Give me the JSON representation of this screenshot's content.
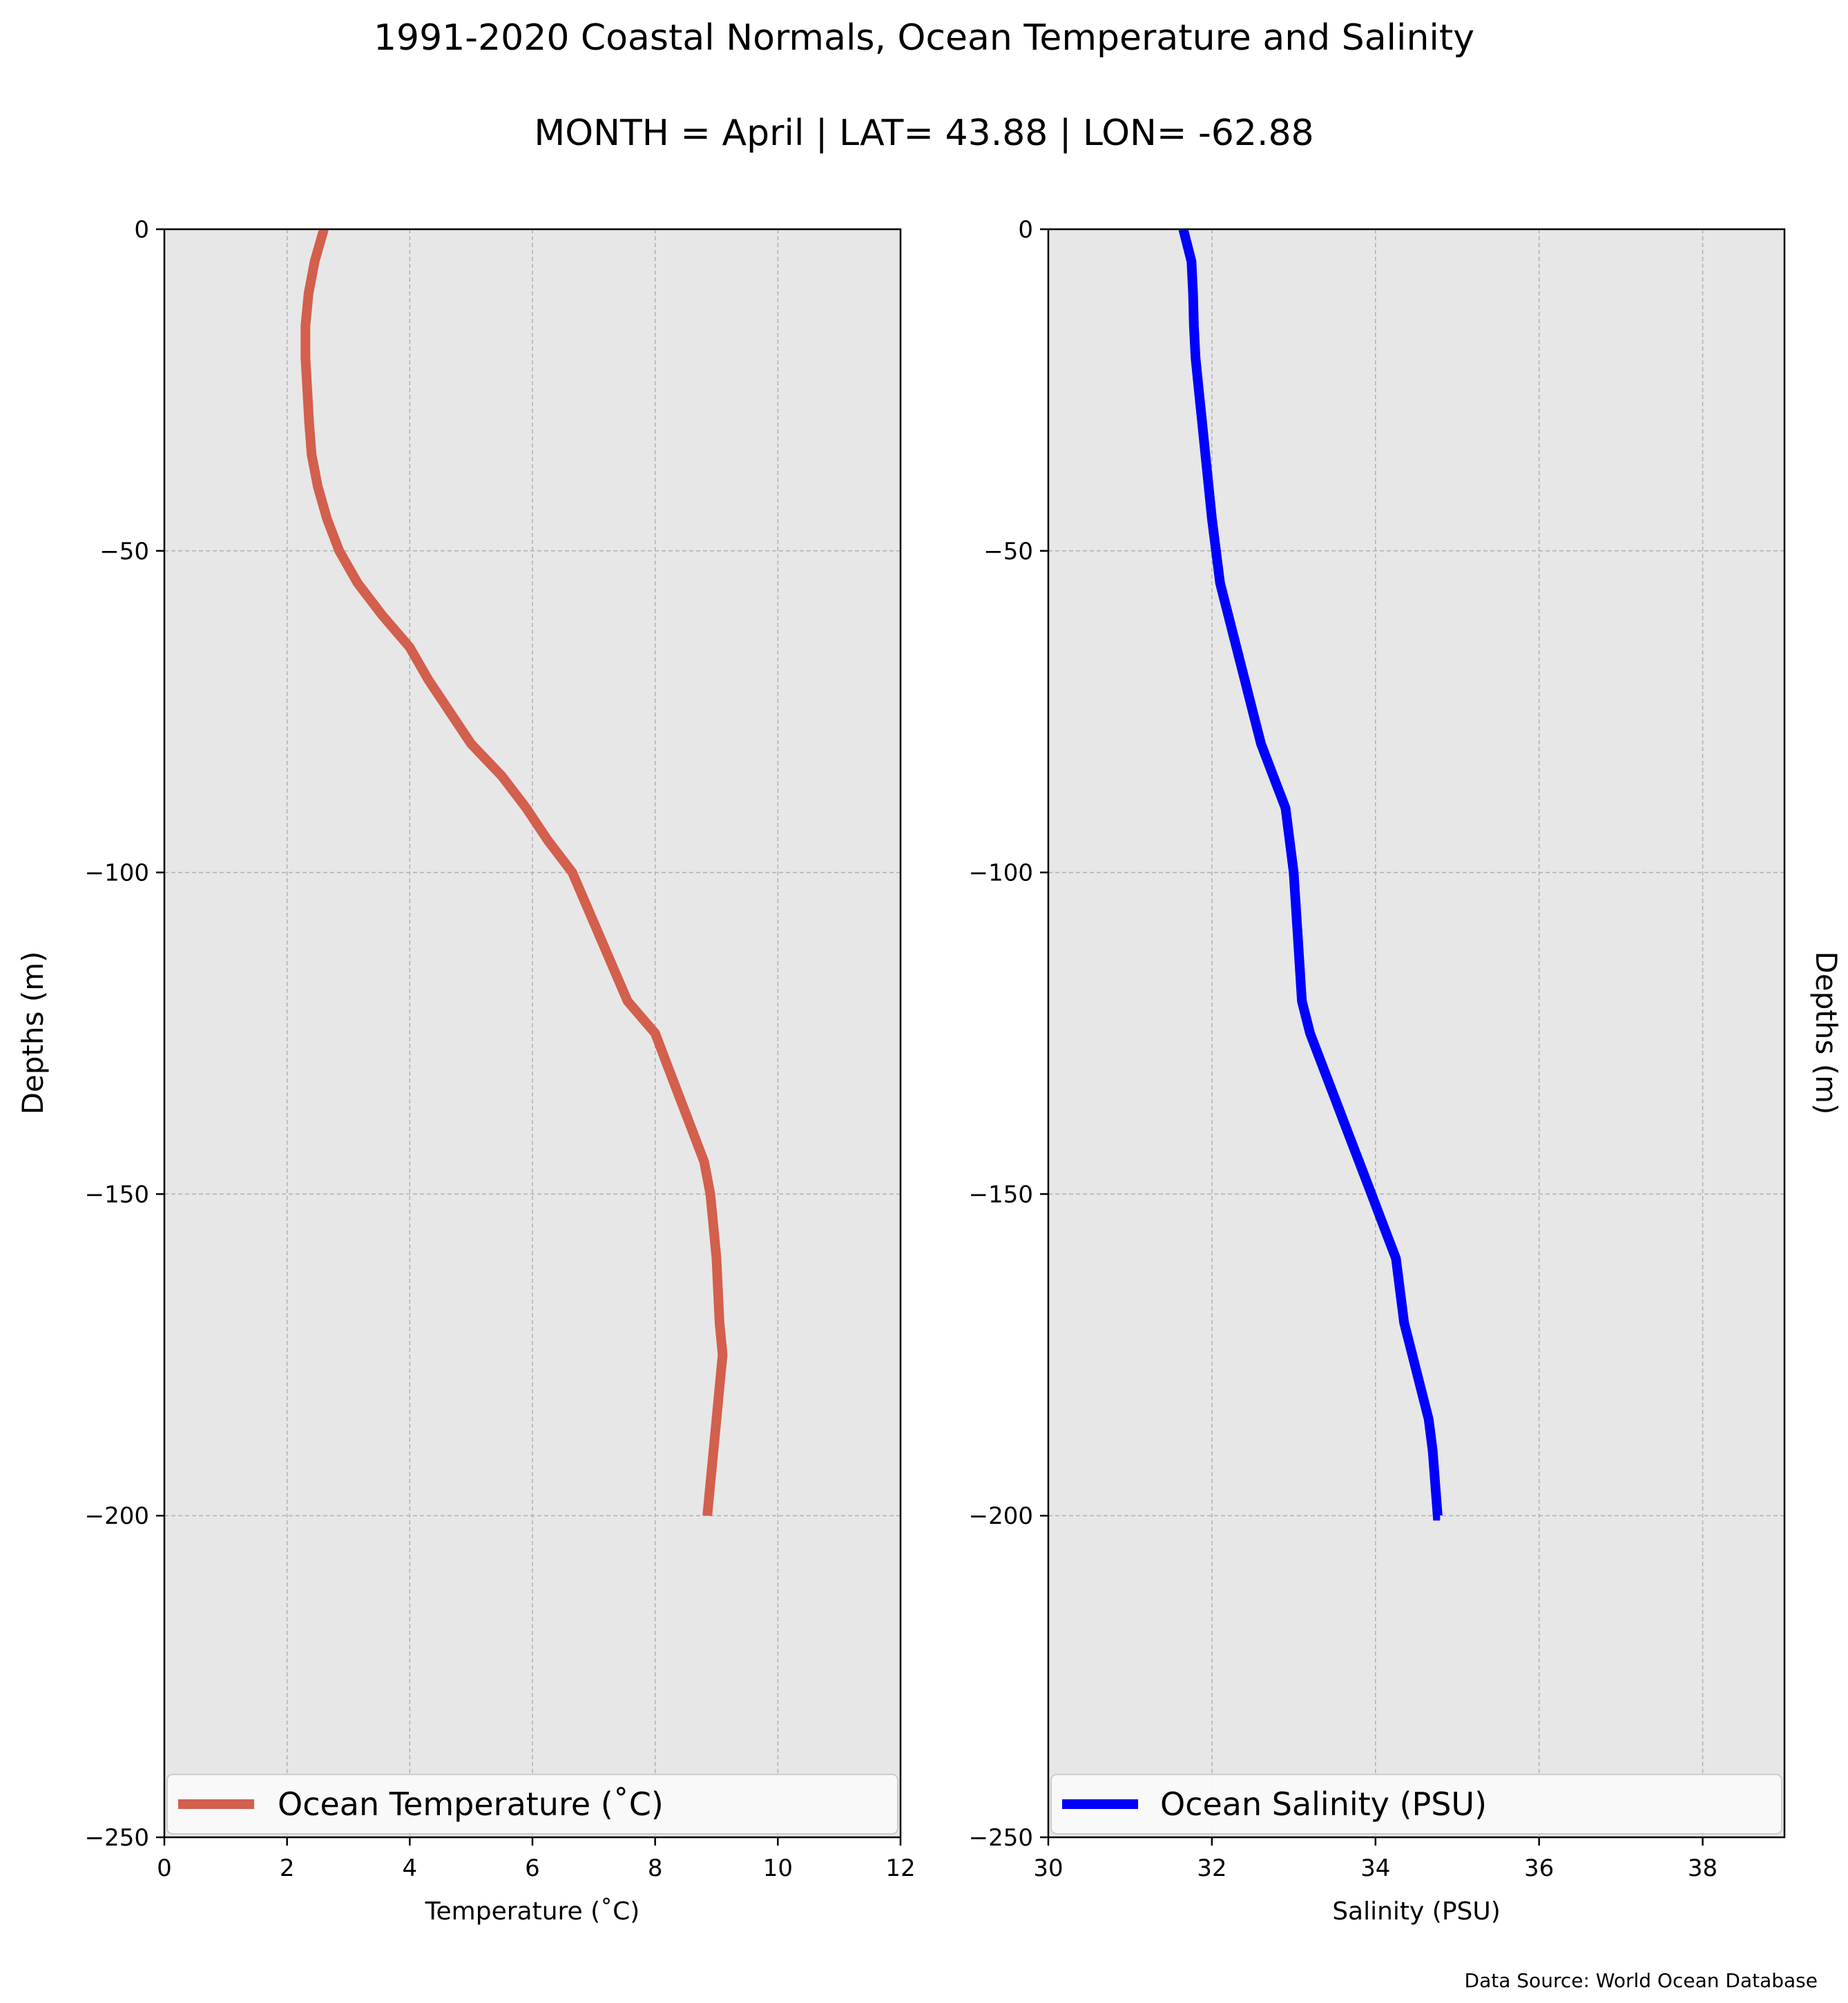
{
  "figure": {
    "title": "1991-2020 Coastal Normals, Ocean Temperature and Salinity",
    "subtitle": "MONTH = April | LAT= 43.88 | LON= -62.88",
    "source_note": "Data Source: World Ocean Database",
    "background": "#e7e7e7"
  },
  "chart_data": [
    {
      "type": "line",
      "xlabel": "Temperature ($^\\circ$C)",
      "xlabel_display": "Temperature (˚C)",
      "ylabel": "Depths (m)",
      "xlim": [
        0,
        12
      ],
      "ylim": [
        -250,
        0
      ],
      "xticks": [
        "0",
        "2",
        "4",
        "6",
        "8",
        "10",
        "12"
      ],
      "yticks": [
        "0",
        "−50",
        "−100",
        "−150",
        "−200",
        "−250"
      ],
      "grid": true,
      "legend_position": "bottom",
      "series": [
        {
          "name": "Ocean Temperature (˚C)",
          "color": "#d35f4d",
          "x": [
            2.6,
            2.45,
            2.35,
            2.3,
            2.3,
            2.33,
            2.36,
            2.4,
            2.5,
            2.65,
            2.85,
            3.15,
            3.55,
            4.0,
            4.3,
            4.65,
            5.0,
            5.5,
            5.9,
            6.25,
            6.65,
            7.1,
            7.55,
            8.0,
            8.2,
            8.4,
            8.6,
            8.8,
            8.9,
            8.95,
            9.0,
            9.05,
            9.1,
            9.05,
            9.0,
            8.95,
            8.9,
            8.85
          ],
          "y": [
            0,
            -5,
            -10,
            -15,
            -20,
            -25,
            -30,
            -35,
            -40,
            -45,
            -50,
            -55,
            -60,
            -65,
            -70,
            -75,
            -80,
            -85,
            -90,
            -95,
            -100,
            -110,
            -120,
            -125,
            -130,
            -135,
            -140,
            -145,
            -150,
            -155,
            -160,
            -170,
            -175,
            -180,
            -185,
            -190,
            -195,
            -200
          ]
        }
      ]
    },
    {
      "type": "line",
      "xlabel": "Salinity (PSU)",
      "ylabel": "Depths (m)",
      "ylabel_position": "right",
      "xlim": [
        30,
        39
      ],
      "ylim": [
        -250,
        0
      ],
      "xticks": [
        "30",
        "32",
        "34",
        "36",
        "38"
      ],
      "yticks": [
        "0",
        "−50",
        "−100",
        "−150",
        "−200",
        "−250"
      ],
      "grid": true,
      "legend_position": "bottom",
      "series": [
        {
          "name": "Ocean Salinity (PSU)",
          "color": "#0000ff",
          "x": [
            31.65,
            31.75,
            31.77,
            31.78,
            31.8,
            31.84,
            31.88,
            31.92,
            31.96,
            32.0,
            32.05,
            32.1,
            32.2,
            32.3,
            32.4,
            32.5,
            32.6,
            32.75,
            32.9,
            32.95,
            33.0,
            33.05,
            33.1,
            33.2,
            33.35,
            33.5,
            33.65,
            33.8,
            33.95,
            34.1,
            34.25,
            34.35,
            34.45,
            34.55,
            34.65,
            34.7,
            34.73,
            34.76,
            34.77,
            34.78,
            34.79
          ],
          "y": [
            0,
            -5,
            -10,
            -15,
            -20,
            -25,
            -30,
            -35,
            -40,
            -45,
            -50,
            -55,
            -60,
            -65,
            -70,
            -75,
            -80,
            -85,
            -90,
            -95,
            -100,
            -110,
            -120,
            -125,
            -130,
            -135,
            -140,
            -145,
            -150,
            -155,
            -160,
            -170,
            -175,
            -180,
            -185,
            -190,
            -195,
            -200,
            -200,
            -200,
            -200
          ]
        }
      ]
    }
  ]
}
